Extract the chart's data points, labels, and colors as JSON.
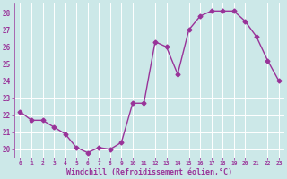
{
  "x": [
    0,
    1,
    2,
    3,
    4,
    5,
    6,
    7,
    8,
    9,
    10,
    11,
    12,
    13,
    14,
    15,
    16,
    17,
    18,
    19,
    20,
    21,
    22,
    23
  ],
  "y": [
    22.2,
    21.7,
    21.7,
    21.3,
    20.9,
    20.1,
    19.8,
    20.1,
    20.0,
    20.4,
    22.7,
    22.7,
    26.3,
    26.0,
    24.4,
    27.0,
    27.8,
    28.1,
    28.1,
    28.1,
    27.5,
    26.6,
    25.2,
    24.0
  ],
  "line_color": "#993399",
  "marker": "D",
  "marker_size": 2.5,
  "bg_color": "#cce8e8",
  "grid_color": "#b0d0d0",
  "xlabel": "Windchill (Refroidissement éolien,°C)",
  "xlabel_color": "#993399",
  "tick_color": "#993399",
  "ylabel_ticks": [
    20,
    21,
    22,
    23,
    24,
    25,
    26,
    27,
    28
  ],
  "xlim": [
    -0.5,
    23.5
  ],
  "ylim": [
    19.5,
    28.6
  ],
  "linewidth": 1.0
}
